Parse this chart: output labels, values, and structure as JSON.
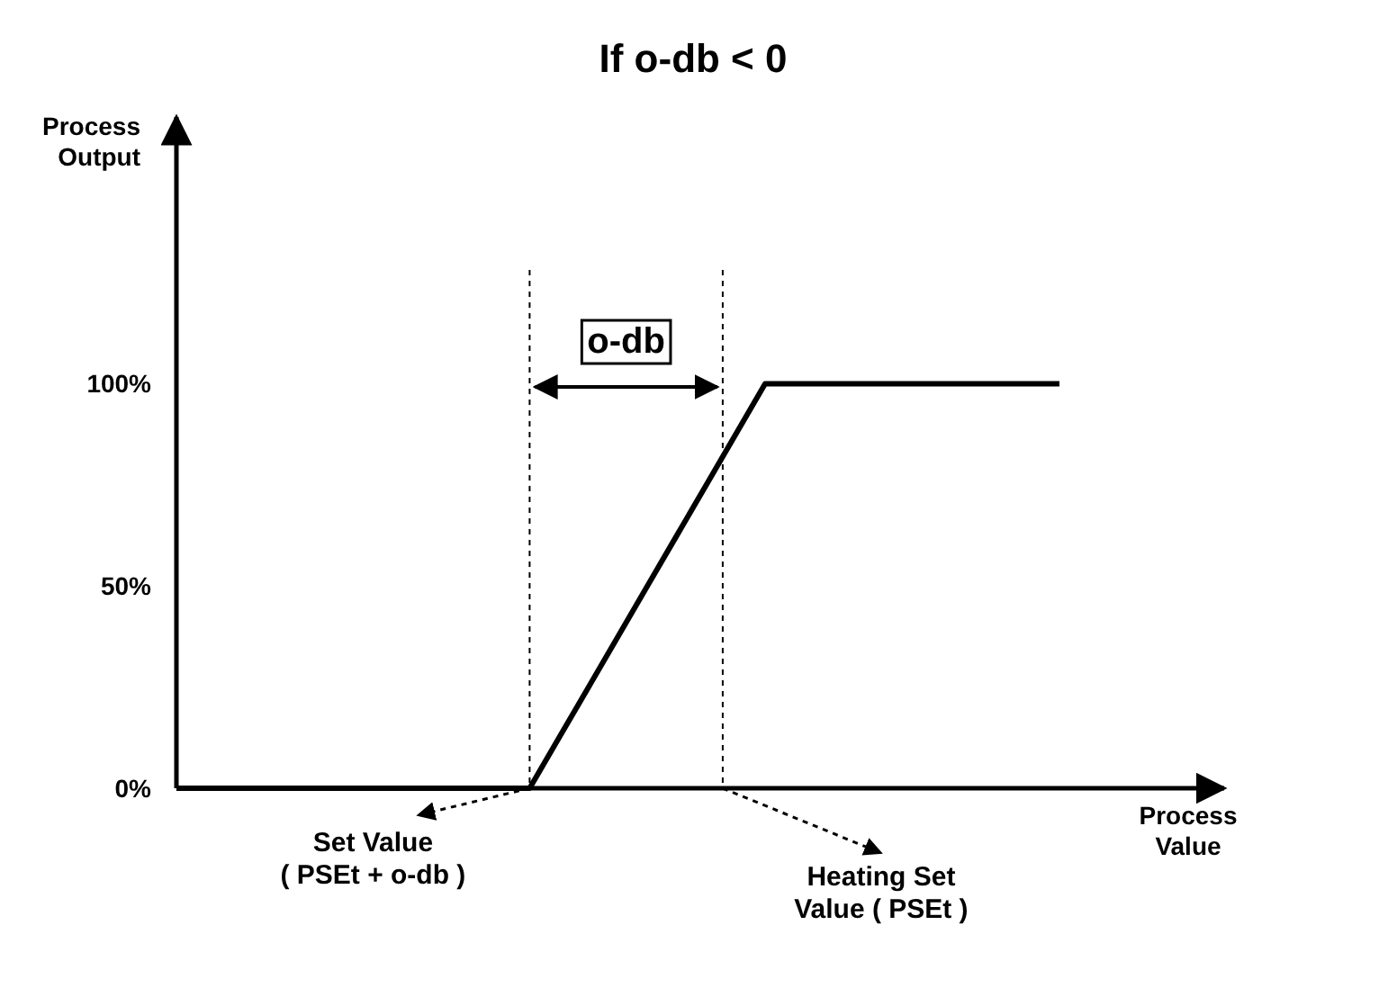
{
  "chart_data": {
    "type": "line",
    "title": "If o-db < 0",
    "xlabel": "Process Value",
    "ylabel": "Process Output",
    "categories": [
      null,
      null,
      null,
      null,
      null,
      null,
      null,
      null,
      null,
      null,
      null,
      null,
      null,
      null,
      null,
      null,
      null,
      null,
      null,
      null,
      null,
      null,
      null,
      null,
      null,
      null,
      null,
      null,
      null,
      null,
      null
    ],
    "series": [
      {
        "color": "#000000",
        "values": [
          0,
          0,
          0,
          0,
          0,
          0,
          0,
          0,
          0,
          0,
          0,
          0,
          0,
          12.5,
          25,
          37.5,
          50,
          62.5,
          75,
          87.5,
          100,
          100,
          100,
          100,
          100,
          100,
          100,
          100,
          100,
          100,
          100
        ]
      }
    ],
    "ylim": [
      0,
      166
    ],
    "yticks": [
      {
        "value": 0,
        "label": "0%"
      },
      {
        "value": 50,
        "label": "50%"
      },
      {
        "value": 100,
        "label": "100%"
      }
    ],
    "tick_labels": "y",
    "marker": "none",
    "line_style": "solid",
    "annotations": [
      "Set Value\n( PSEt + o-db )",
      "Heating Set\nValue ( PSEt )",
      "o-db"
    ]
  }
}
